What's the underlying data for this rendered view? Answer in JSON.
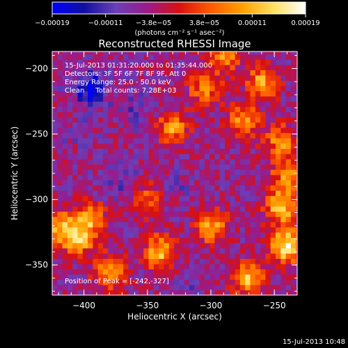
{
  "chart_data": {
    "type": "heatmap",
    "title": "Reconstructed RHESSI Image",
    "xlabel": "Heliocentric X (arcsec)",
    "ylabel": "Heliocentric Y (arcsec)",
    "xlim": [
      -425,
      -232
    ],
    "ylim": [
      -373,
      -187
    ],
    "xticks": [
      -400,
      -350,
      -300,
      -250
    ],
    "yticks": [
      -200,
      -250,
      -300,
      -350
    ],
    "xtick_labels": [
      "−400",
      "−350",
      "−300",
      "−250"
    ],
    "ytick_labels": [
      "−200",
      "−250",
      "−300",
      "−350"
    ],
    "colorbar": {
      "range": [
        -0.00019,
        0.00019
      ],
      "ticks": [
        -0.00019,
        -0.00011,
        -3.8e-05,
        3.8e-05,
        0.00011,
        0.00019
      ],
      "tick_labels": [
        "−0.00019",
        "−0.00011",
        "−3.8e−05",
        "3.8e−05",
        "0.00011",
        "0.00019"
      ],
      "unit_label": "(photons cm⁻² s⁻¹ asec⁻²)",
      "colors": [
        "#0000ff",
        "#1010a0",
        "#6a3fb8",
        "#9a1a8a",
        "#d81010",
        "#ff5a00",
        "#ffa000",
        "#ffe060",
        "#ffffff"
      ]
    },
    "annotations": [
      "15-Jul-2013 01:31:20.000 to 01:35:44.000",
      "Detectors: 3F 5F 6F 7F 8F 9F, Att 0",
      "Energy Range: 25.0 - 50.0 keV",
      "Clean     Total counts: 7.28E+03"
    ],
    "peak_label": "Position of Peak = [-242,-327]",
    "peak": [
      -242,
      -327
    ],
    "sources": [
      {
        "x": -240,
        "y": -335,
        "value": 0.00019
      },
      {
        "x": -245,
        "y": -305,
        "value": 0.00015
      },
      {
        "x": -340,
        "y": -340,
        "value": 0.00013
      },
      {
        "x": -405,
        "y": -330,
        "value": 0.00012
      },
      {
        "x": -420,
        "y": -320,
        "value": 0.00011
      },
      {
        "x": -380,
        "y": -355,
        "value": 0.00011
      },
      {
        "x": -300,
        "y": -320,
        "value": 0.00012
      },
      {
        "x": -270,
        "y": -360,
        "value": 0.00013
      },
      {
        "x": -260,
        "y": -210,
        "value": 0.00011
      },
      {
        "x": -275,
        "y": -240,
        "value": 0.0001
      },
      {
        "x": -245,
        "y": -255,
        "value": 9e-05
      },
      {
        "x": -330,
        "y": -245,
        "value": 0.0001
      },
      {
        "x": -305,
        "y": -215,
        "value": 8e-05
      },
      {
        "x": -395,
        "y": -315,
        "value": 9e-05
      },
      {
        "x": -290,
        "y": -190,
        "value": 9e-05
      },
      {
        "x": -240,
        "y": -280,
        "value": 9e-05
      },
      {
        "x": -350,
        "y": -300,
        "value": 7e-05
      },
      {
        "x": -395,
        "y": -215,
        "value": -0.00019
      },
      {
        "x": -370,
        "y": -285,
        "value": -0.0001
      },
      {
        "x": -330,
        "y": -290,
        "value": -8e-05
      },
      {
        "x": -360,
        "y": -230,
        "value": -9e-05
      },
      {
        "x": -405,
        "y": -250,
        "value": -7e-05
      },
      {
        "x": -320,
        "y": -370,
        "value": -8e-05
      }
    ]
  },
  "footer": {
    "timestamp": "15-Jul-2013 10:48"
  }
}
